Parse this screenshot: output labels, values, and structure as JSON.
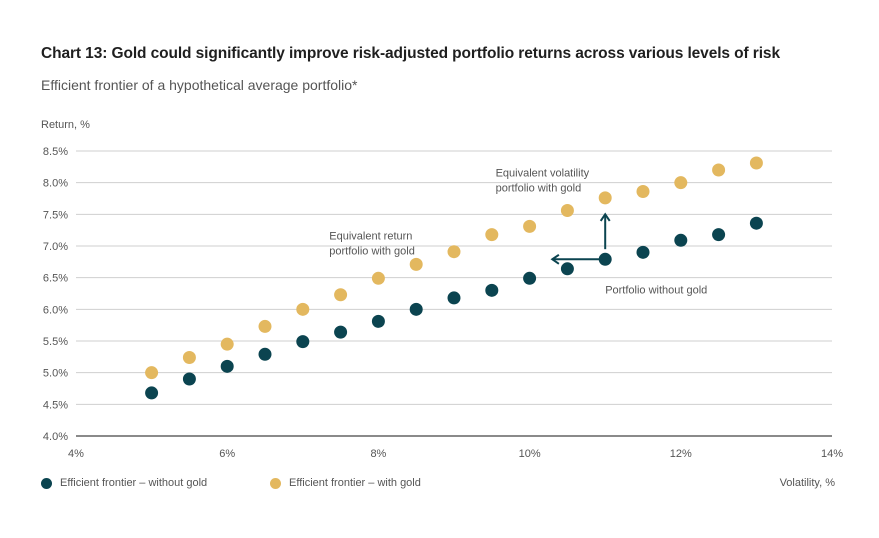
{
  "header": {
    "title": "Chart 13: Gold could significantly improve risk-adjusted portfolio returns across various levels of risk",
    "subtitle": "Efficient frontier of a hypothetical average portfolio*"
  },
  "colors": {
    "without_gold": "#0b4450",
    "with_gold": "#e3b85f",
    "arrow": "#0b4450",
    "grid": "#cfcfcf",
    "axis": "#8a8a8a"
  },
  "chart_data": {
    "type": "scatter",
    "title": "Chart 13: Gold could significantly improve risk-adjusted portfolio returns across various levels of risk",
    "subtitle": "Efficient frontier of a hypothetical average portfolio*",
    "xlabel": "Volatility, %",
    "ylabel": "Return, %",
    "xlim": [
      4,
      14
    ],
    "ylim": [
      4.0,
      8.5
    ],
    "x_ticks": [
      4,
      6,
      8,
      10,
      12,
      14
    ],
    "x_tick_labels": [
      "4%",
      "6%",
      "8%",
      "10%",
      "12%",
      "14%"
    ],
    "y_ticks": [
      4.0,
      4.5,
      5.0,
      5.5,
      6.0,
      6.5,
      7.0,
      7.5,
      8.0,
      8.5
    ],
    "y_tick_labels": [
      "4.0%",
      "4.5%",
      "5.0%",
      "5.5%",
      "6.0%",
      "6.5%",
      "7.0%",
      "7.5%",
      "8.0%",
      "8.5%"
    ],
    "grid": true,
    "legend_position": "bottom-left",
    "x": [
      5.0,
      5.5,
      6.0,
      6.5,
      7.0,
      7.5,
      8.0,
      8.5,
      9.0,
      9.5,
      10.0,
      10.5,
      11.0,
      11.5,
      12.0,
      12.5,
      13.0
    ],
    "series": [
      {
        "name": "Efficient frontier – without gold",
        "color_key": "without_gold",
        "values": [
          4.68,
          4.9,
          5.1,
          5.29,
          5.49,
          5.64,
          5.81,
          6.0,
          6.18,
          6.3,
          6.49,
          6.64,
          6.79,
          6.9,
          7.09,
          7.18,
          7.36
        ]
      },
      {
        "name": "Efficient frontier – with gold",
        "color_key": "with_gold",
        "values": [
          5.0,
          5.24,
          5.45,
          5.73,
          6.0,
          6.23,
          6.49,
          6.71,
          6.91,
          7.18,
          7.31,
          7.56,
          7.76,
          7.86,
          8.0,
          8.2,
          8.31
        ]
      }
    ],
    "annotations": [
      {
        "id": "equivalent-return",
        "lines": [
          "Equivalent return",
          "portfolio with gold"
        ],
        "x": 7.35,
        "y": 7.1
      },
      {
        "id": "equivalent-volatility",
        "lines": [
          "Equivalent volatility",
          "portfolio with gold"
        ],
        "x": 9.55,
        "y": 8.1
      },
      {
        "id": "portfolio-without-gold",
        "lines": [
          "Portfolio without gold"
        ],
        "x": 11.0,
        "y": 6.25
      }
    ],
    "arrows": [
      {
        "id": "arrow-left",
        "from": [
          10.95,
          6.79
        ],
        "to": [
          10.3,
          6.79
        ]
      },
      {
        "id": "arrow-up",
        "from": [
          11.0,
          6.95
        ],
        "to": [
          11.0,
          7.5
        ]
      }
    ]
  },
  "legend": {
    "items": [
      {
        "label": "Efficient frontier – without gold",
        "color_key": "without_gold"
      },
      {
        "label": "Efficient frontier – with gold",
        "color_key": "with_gold"
      }
    ],
    "x_axis_label": "Volatility, %"
  },
  "axes": {
    "y_axis_label": "Return, %"
  }
}
